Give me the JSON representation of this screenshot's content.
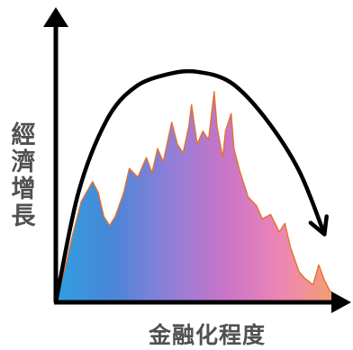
{
  "chart_data": {
    "type": "area",
    "title": "",
    "xlabel": "金融化程度",
    "ylabel": "經濟增長",
    "xlim": [
      0,
      1
    ],
    "ylim": [
      0,
      1
    ],
    "grid": false,
    "legend": "none",
    "gradient_colors": [
      "#2f9fe0",
      "#4a86d8",
      "#8f7fd8",
      "#c874c8",
      "#ee86b4",
      "#f4a06a"
    ],
    "arrow_color": "#000000",
    "series": [
      {
        "kind": "area",
        "values": [
          [
            0.0,
            0.0
          ],
          [
            0.03,
            0.14
          ],
          [
            0.06,
            0.31
          ],
          [
            0.09,
            0.46
          ],
          [
            0.13,
            0.55
          ],
          [
            0.15,
            0.5
          ],
          [
            0.17,
            0.39
          ],
          [
            0.19,
            0.35
          ],
          [
            0.21,
            0.39
          ],
          [
            0.24,
            0.5
          ],
          [
            0.26,
            0.61
          ],
          [
            0.29,
            0.57
          ],
          [
            0.32,
            0.66
          ],
          [
            0.34,
            0.59
          ],
          [
            0.36,
            0.7
          ],
          [
            0.38,
            0.64
          ],
          [
            0.41,
            0.82
          ],
          [
            0.43,
            0.72
          ],
          [
            0.45,
            0.68
          ],
          [
            0.47,
            0.8
          ],
          [
            0.48,
            0.9
          ],
          [
            0.5,
            0.72
          ],
          [
            0.52,
            0.78
          ],
          [
            0.54,
            0.74
          ],
          [
            0.56,
            0.96
          ],
          [
            0.57,
            0.8
          ],
          [
            0.59,
            0.66
          ],
          [
            0.6,
            0.78
          ],
          [
            0.62,
            0.86
          ],
          [
            0.63,
            0.7
          ],
          [
            0.65,
            0.6
          ],
          [
            0.68,
            0.48
          ],
          [
            0.71,
            0.44
          ],
          [
            0.73,
            0.38
          ],
          [
            0.76,
            0.4
          ],
          [
            0.79,
            0.32
          ],
          [
            0.81,
            0.36
          ],
          [
            0.83,
            0.25
          ],
          [
            0.86,
            0.14
          ],
          [
            0.88,
            0.11
          ],
          [
            0.91,
            0.08
          ],
          [
            0.93,
            0.17
          ],
          [
            0.95,
            0.1
          ],
          [
            0.97,
            0.05
          ],
          [
            1.0,
            0.02
          ]
        ]
      },
      {
        "kind": "line",
        "arrow": true,
        "values": [
          [
            0.0,
            0.0
          ],
          [
            0.08,
            0.5
          ],
          [
            0.18,
            0.83
          ],
          [
            0.28,
            0.98
          ],
          [
            0.4,
            1.04
          ],
          [
            0.5,
            1.05
          ],
          [
            0.62,
            1.0
          ],
          [
            0.74,
            0.84
          ],
          [
            0.86,
            0.6
          ],
          [
            0.95,
            0.31
          ]
        ]
      }
    ]
  }
}
